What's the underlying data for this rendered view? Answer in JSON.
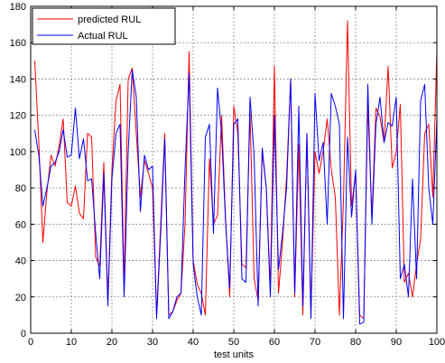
{
  "chart_data": {
    "type": "line",
    "title": "",
    "xlabel": "test units",
    "ylabel": "",
    "xlim": [
      0,
      100
    ],
    "ylim": [
      0,
      180
    ],
    "xticks": [
      0,
      10,
      20,
      30,
      40,
      50,
      60,
      70,
      80,
      90,
      100
    ],
    "yticks": [
      0,
      20,
      40,
      60,
      80,
      100,
      120,
      140,
      160,
      180
    ],
    "grid": true,
    "legend_position": "top-left",
    "series": [
      {
        "name": "predicted RUL",
        "color": "#ff0000",
        "x": [
          1,
          2,
          3,
          4,
          5,
          6,
          7,
          8,
          9,
          10,
          11,
          12,
          13,
          14,
          15,
          16,
          17,
          18,
          19,
          20,
          21,
          22,
          23,
          24,
          25,
          26,
          27,
          28,
          29,
          30,
          31,
          32,
          33,
          34,
          35,
          36,
          37,
          38,
          39,
          40,
          41,
          42,
          43,
          44,
          45,
          46,
          47,
          48,
          49,
          50,
          51,
          52,
          53,
          54,
          55,
          56,
          57,
          58,
          59,
          60,
          61,
          62,
          63,
          64,
          65,
          66,
          67,
          68,
          69,
          70,
          71,
          72,
          73,
          74,
          75,
          76,
          77,
          78,
          79,
          80,
          81,
          82,
          83,
          84,
          85,
          86,
          87,
          88,
          89,
          90,
          91,
          92,
          93,
          94,
          95,
          96,
          97,
          98,
          99,
          100
        ],
        "values": [
          150,
          105,
          50,
          78,
          98,
          92,
          103,
          118,
          72,
          70,
          81,
          66,
          63,
          110,
          108,
          42,
          37,
          94,
          18,
          90,
          128,
          137,
          27,
          140,
          146,
          110,
          75,
          95,
          88,
          80,
          10,
          60,
          110,
          10,
          12,
          18,
          22,
          60,
          155,
          40,
          27,
          22,
          10,
          96,
          60,
          65,
          120,
          62,
          20,
          125,
          110,
          38,
          36,
          122,
          30,
          18,
          100,
          80,
          25,
          147,
          22,
          50,
          86,
          140,
          20,
          104,
          10,
          110,
          12,
          100,
          88,
          100,
          118,
          90,
          75,
          10,
          73,
          172,
          70,
          88,
          10,
          8,
          126,
          64,
          124,
          119,
          105,
          147,
          91,
          100,
          126,
          28,
          33,
          20,
          38,
          52,
          110,
          115,
          75,
          155
        ]
      },
      {
        "name": "Actual RUL",
        "color": "#0000ff",
        "x": [
          1,
          2,
          3,
          4,
          5,
          6,
          7,
          8,
          9,
          10,
          11,
          12,
          13,
          14,
          15,
          16,
          17,
          18,
          19,
          20,
          21,
          22,
          23,
          24,
          25,
          26,
          27,
          28,
          29,
          30,
          31,
          32,
          33,
          34,
          35,
          36,
          37,
          38,
          39,
          40,
          41,
          42,
          43,
          44,
          45,
          46,
          47,
          48,
          49,
          50,
          51,
          52,
          53,
          54,
          55,
          56,
          57,
          58,
          59,
          60,
          61,
          62,
          63,
          64,
          65,
          66,
          67,
          68,
          69,
          70,
          71,
          72,
          73,
          74,
          75,
          76,
          77,
          78,
          79,
          80,
          81,
          82,
          83,
          84,
          85,
          86,
          87,
          88,
          89,
          90,
          91,
          92,
          93,
          94,
          95,
          96,
          97,
          98,
          99,
          100
        ],
        "values": [
          112,
          98,
          70,
          80,
          92,
          94,
          100,
          112,
          97,
          98,
          124,
          96,
          107,
          84,
          85,
          55,
          30,
          88,
          15,
          85,
          110,
          115,
          20,
          100,
          145,
          130,
          67,
          98,
          90,
          92,
          8,
          55,
          107,
          8,
          12,
          20,
          22,
          90,
          143,
          38,
          20,
          10,
          108,
          115,
          55,
          135,
          110,
          60,
          25,
          115,
          118,
          30,
          28,
          130,
          98,
          15,
          102,
          80,
          20,
          120,
          35,
          55,
          80,
          140,
          22,
          125,
          15,
          110,
          8,
          132,
          95,
          105,
          60,
          132,
          125,
          115,
          8,
          108,
          64,
          90,
          5,
          6,
          137,
          60,
          115,
          130,
          105,
          116,
          114,
          130,
          30,
          38,
          20,
          85,
          30,
          128,
          137,
          80,
          60,
          118
        ]
      }
    ]
  }
}
